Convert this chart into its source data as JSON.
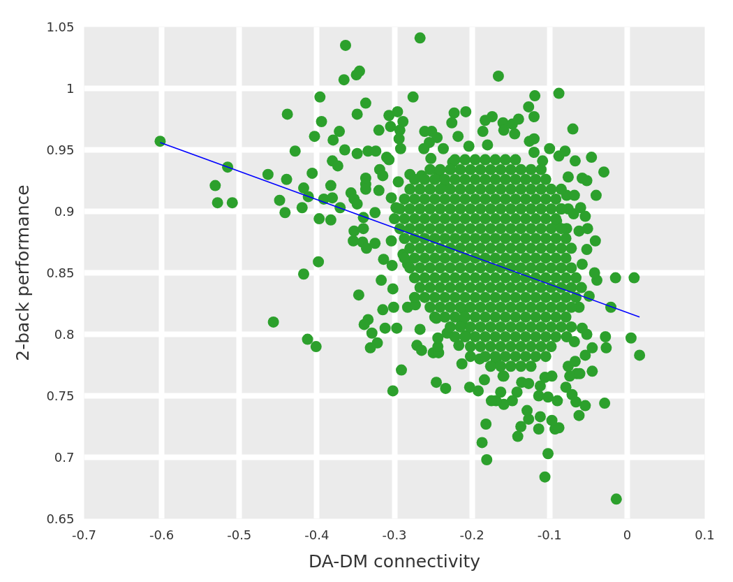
{
  "chart_data": {
    "type": "scatter",
    "xlabel": "DA-DM connectivity",
    "ylabel": "2-back performance",
    "xlim": [
      -0.7,
      0.1
    ],
    "ylim": [
      0.65,
      1.05
    ],
    "xticks": [
      -0.7,
      -0.6,
      -0.5,
      -0.4,
      -0.3,
      -0.2,
      -0.1,
      0,
      0.1
    ],
    "yticks": [
      0.65,
      0.7,
      0.75,
      0.8,
      0.85,
      0.9,
      0.95,
      1,
      1.05
    ],
    "grid": true,
    "marker": "circle",
    "series": [
      {
        "color": "#2ca02c",
        "x": [
          -0.363,
          -0.345,
          -0.349,
          -0.365,
          -0.396,
          -0.337,
          -0.438,
          -0.348,
          -0.394,
          -0.371,
          -0.403,
          -0.32,
          -0.307,
          -0.305,
          -0.379,
          -0.602,
          -0.428,
          -0.364,
          -0.348,
          -0.334,
          -0.324,
          -0.31,
          -0.307,
          -0.515,
          -0.38,
          -0.373,
          -0.463,
          -0.406,
          -0.439,
          -0.337,
          -0.319,
          -0.315,
          -0.531,
          -0.382,
          -0.337,
          -0.337,
          -0.32,
          -0.417,
          -0.411,
          -0.356,
          -0.352,
          -0.348,
          -0.448,
          -0.528,
          -0.509,
          -0.391,
          -0.38,
          -0.37,
          -0.419,
          -0.441,
          -0.397,
          -0.382,
          -0.34,
          -0.325,
          -0.352,
          -0.34,
          -0.353,
          -0.341,
          -0.336,
          -0.325,
          -0.304,
          -0.398,
          -0.417,
          -0.314,
          -0.303,
          -0.317,
          -0.346,
          -0.302,
          -0.456,
          -0.334,
          -0.339,
          -0.315,
          -0.301,
          -0.312,
          -0.329,
          -0.412,
          -0.401,
          -0.322,
          -0.331,
          -0.302,
          -0.267,
          -0.166,
          -0.276,
          -0.088,
          -0.119,
          -0.127,
          -0.12,
          -0.07,
          -0.296,
          -0.289,
          -0.293,
          -0.294,
          -0.292,
          -0.223,
          -0.208,
          -0.226,
          -0.261,
          -0.252,
          -0.245,
          -0.255,
          -0.262,
          -0.218,
          -0.183,
          -0.174,
          -0.186,
          -0.16,
          -0.159,
          -0.145,
          -0.148,
          -0.14,
          -0.126,
          -0.12,
          -0.18,
          -0.204,
          -0.1,
          -0.088,
          -0.08,
          -0.067,
          -0.046,
          -0.03,
          -0.12,
          -0.109,
          -0.243,
          -0.237,
          -0.253,
          -0.225,
          -0.235,
          -0.28,
          -0.295,
          -0.265,
          -0.052,
          -0.058,
          -0.076,
          -0.04,
          -0.078,
          -0.068,
          -0.085,
          -0.076,
          -0.069,
          -0.06,
          -0.054,
          -0.051,
          -0.062,
          -0.078,
          -0.041,
          -0.091,
          -0.052,
          -0.015,
          0.009,
          -0.039,
          -0.058,
          -0.283,
          -0.289,
          -0.304,
          -0.298,
          -0.014,
          -0.106,
          -0.102,
          -0.181,
          -0.187,
          -0.182,
          -0.141,
          -0.137,
          -0.127,
          -0.129,
          -0.114,
          -0.112,
          -0.093,
          -0.088,
          -0.097,
          -0.062,
          -0.054,
          -0.066,
          -0.071,
          -0.029,
          -0.045,
          -0.028,
          -0.027,
          0.005,
          0.016,
          -0.021,
          -0.045,
          -0.052,
          -0.058,
          -0.078,
          -0.068,
          -0.054,
          -0.065,
          -0.074,
          -0.079,
          -0.09,
          -0.102,
          -0.114,
          -0.112,
          -0.106,
          -0.142,
          -0.136,
          -0.148,
          -0.159,
          -0.169,
          -0.175,
          -0.163,
          -0.127,
          -0.159,
          -0.184,
          -0.192,
          -0.203,
          -0.246,
          -0.234,
          -0.291,
          -0.267,
          -0.271,
          -0.265,
          -0.25,
          -0.243,
          -0.244,
          -0.244,
          -0.246,
          -0.232,
          -0.297,
          -0.283,
          -0.273,
          -0.211,
          -0.213,
          -0.217,
          -0.208,
          -0.202,
          -0.19,
          -0.169,
          -0.16,
          -0.213,
          -0.097,
          -0.076,
          -0.067,
          -0.061,
          -0.049,
          -0.042,
          -0.062,
          -0.222,
          -0.209,
          -0.196,
          -0.183,
          -0.17,
          -0.157,
          -0.144,
          -0.254,
          -0.241,
          -0.228,
          -0.215,
          -0.202,
          -0.189,
          -0.176,
          -0.163,
          -0.15,
          -0.137,
          -0.124,
          -0.111,
          -0.274,
          -0.261,
          -0.248,
          -0.235,
          -0.222,
          -0.209,
          -0.196,
          -0.183,
          -0.17,
          -0.157,
          -0.144,
          -0.131,
          -0.118,
          -0.105,
          -0.28,
          -0.267,
          -0.254,
          -0.241,
          -0.228,
          -0.215,
          -0.202,
          -0.189,
          -0.176,
          -0.163,
          -0.15,
          -0.137,
          -0.124,
          -0.111,
          -0.098,
          -0.085,
          -0.287,
          -0.274,
          -0.261,
          -0.248,
          -0.235,
          -0.222,
          -0.209,
          -0.196,
          -0.183,
          -0.17,
          -0.157,
          -0.144,
          -0.131,
          -0.118,
          -0.105,
          -0.092,
          -0.293,
          -0.28,
          -0.267,
          -0.254,
          -0.241,
          -0.228,
          -0.215,
          -0.202,
          -0.189,
          -0.176,
          -0.163,
          -0.15,
          -0.137,
          -0.124,
          -0.111,
          -0.098,
          -0.085,
          -0.3,
          -0.287,
          -0.274,
          -0.261,
          -0.248,
          -0.235,
          -0.222,
          -0.209,
          -0.196,
          -0.183,
          -0.17,
          -0.157,
          -0.144,
          -0.131,
          -0.118,
          -0.105,
          -0.092,
          -0.293,
          -0.28,
          -0.267,
          -0.254,
          -0.241,
          -0.228,
          -0.215,
          -0.202,
          -0.189,
          -0.176,
          -0.163,
          -0.15,
          -0.137,
          -0.124,
          -0.111,
          -0.098,
          -0.085,
          -0.287,
          -0.274,
          -0.261,
          -0.248,
          -0.235,
          -0.222,
          -0.209,
          -0.196,
          -0.183,
          -0.17,
          -0.157,
          -0.144,
          -0.131,
          -0.118,
          -0.105,
          -0.092,
          -0.079,
          -0.28,
          -0.267,
          -0.254,
          -0.241,
          -0.228,
          -0.215,
          -0.202,
          -0.189,
          -0.176,
          -0.163,
          -0.15,
          -0.137,
          -0.124,
          -0.111,
          -0.098,
          -0.085,
          -0.072,
          -0.287,
          -0.274,
          -0.261,
          -0.248,
          -0.235,
          -0.222,
          -0.209,
          -0.196,
          -0.183,
          -0.17,
          -0.157,
          -0.144,
          -0.131,
          -0.118,
          -0.105,
          -0.092,
          -0.079,
          -0.28,
          -0.267,
          -0.254,
          -0.241,
          -0.228,
          -0.215,
          -0.202,
          -0.189,
          -0.176,
          -0.163,
          -0.15,
          -0.137,
          -0.124,
          -0.111,
          -0.098,
          -0.085,
          -0.072,
          -0.274,
          -0.261,
          -0.248,
          -0.235,
          -0.222,
          -0.209,
          -0.196,
          -0.183,
          -0.17,
          -0.157,
          -0.144,
          -0.131,
          -0.118,
          -0.105,
          -0.092,
          -0.079,
          -0.066,
          -0.267,
          -0.254,
          -0.241,
          -0.228,
          -0.215,
          -0.202,
          -0.189,
          -0.176,
          -0.163,
          -0.15,
          -0.137,
          -0.124,
          -0.111,
          -0.098,
          -0.085,
          -0.072,
          -0.059,
          -0.274,
          -0.261,
          -0.248,
          -0.235,
          -0.222,
          -0.209,
          -0.196,
          -0.183,
          -0.17,
          -0.157,
          -0.144,
          -0.131,
          -0.118,
          -0.105,
          -0.092,
          -0.079,
          -0.066,
          -0.254,
          -0.241,
          -0.228,
          -0.215,
          -0.202,
          -0.189,
          -0.176,
          -0.163,
          -0.15,
          -0.137,
          -0.124,
          -0.111,
          -0.098,
          -0.085,
          -0.072,
          -0.248,
          -0.235,
          -0.222,
          -0.209,
          -0.196,
          -0.183,
          -0.17,
          -0.157,
          -0.144,
          -0.131,
          -0.118,
          -0.105,
          -0.092,
          -0.079,
          -0.228,
          -0.215,
          -0.202,
          -0.189,
          -0.176,
          -0.163,
          -0.15,
          -0.137,
          -0.124,
          -0.111,
          -0.098,
          -0.085,
          -0.072,
          -0.222,
          -0.209,
          -0.196,
          -0.183,
          -0.17,
          -0.157,
          -0.144,
          -0.131,
          -0.118,
          -0.105,
          -0.092,
          -0.202,
          -0.189,
          -0.176,
          -0.163,
          -0.15,
          -0.137,
          -0.124,
          -0.111,
          -0.098,
          -0.183,
          -0.17,
          -0.157,
          -0.144,
          -0.131,
          -0.118,
          -0.105,
          -0.176,
          -0.163,
          -0.15,
          -0.137,
          -0.124
        ],
        "values": [
          1.035,
          1.014,
          1.011,
          1.007,
          0.993,
          0.988,
          0.979,
          0.979,
          0.973,
          0.965,
          0.961,
          0.966,
          0.978,
          0.969,
          0.958,
          0.957,
          0.949,
          0.95,
          0.947,
          0.949,
          0.949,
          0.944,
          0.942,
          0.936,
          0.941,
          0.937,
          0.93,
          0.931,
          0.926,
          0.927,
          0.934,
          0.929,
          0.921,
          0.921,
          0.922,
          0.918,
          0.917,
          0.919,
          0.912,
          0.915,
          0.91,
          0.906,
          0.909,
          0.907,
          0.907,
          0.91,
          0.911,
          0.903,
          0.903,
          0.899,
          0.894,
          0.893,
          0.895,
          0.899,
          0.884,
          0.886,
          0.876,
          0.875,
          0.87,
          0.874,
          0.876,
          0.859,
          0.849,
          0.861,
          0.856,
          0.844,
          0.832,
          0.837,
          0.81,
          0.812,
          0.808,
          0.82,
          0.822,
          0.805,
          0.801,
          0.796,
          0.79,
          0.793,
          0.789,
          0.754,
          1.041,
          1.01,
          0.993,
          0.996,
          0.994,
          0.985,
          0.977,
          0.967,
          0.981,
          0.973,
          0.966,
          0.959,
          0.951,
          0.98,
          0.981,
          0.972,
          0.965,
          0.965,
          0.96,
          0.956,
          0.951,
          0.961,
          0.974,
          0.977,
          0.965,
          0.972,
          0.966,
          0.963,
          0.971,
          0.975,
          0.957,
          0.959,
          0.954,
          0.953,
          0.951,
          0.945,
          0.949,
          0.941,
          0.944,
          0.932,
          0.948,
          0.941,
          0.932,
          0.951,
          0.943,
          0.94,
          0.921,
          0.93,
          0.924,
          0.929,
          0.925,
          0.927,
          0.928,
          0.913,
          0.913,
          0.913,
          0.902,
          0.902,
          0.898,
          0.903,
          0.896,
          0.886,
          0.884,
          0.886,
          0.876,
          0.892,
          0.869,
          0.846,
          0.846,
          0.844,
          0.857,
          0.857,
          0.865,
          0.911,
          0.903,
          0.666,
          0.684,
          0.703,
          0.698,
          0.712,
          0.727,
          0.717,
          0.725,
          0.731,
          0.738,
          0.723,
          0.733,
          0.723,
          0.724,
          0.73,
          0.734,
          0.742,
          0.745,
          0.751,
          0.744,
          0.77,
          0.798,
          0.789,
          0.797,
          0.783,
          0.822,
          0.789,
          0.8,
          0.805,
          0.798,
          0.794,
          0.783,
          0.768,
          0.766,
          0.757,
          0.746,
          0.749,
          0.75,
          0.758,
          0.765,
          0.753,
          0.761,
          0.746,
          0.743,
          0.746,
          0.746,
          0.753,
          0.76,
          0.766,
          0.763,
          0.754,
          0.757,
          0.761,
          0.756,
          0.771,
          0.804,
          0.791,
          0.787,
          0.785,
          0.785,
          0.79,
          0.797,
          0.813,
          0.801,
          0.805,
          0.822,
          0.824,
          0.82,
          0.81,
          0.791,
          0.799,
          0.782,
          0.78,
          0.778,
          0.766,
          0.776,
          0.766,
          0.774,
          0.778,
          0.768,
          0.831,
          0.85,
          0.822,
          0.942,
          0.942,
          0.942,
          0.942,
          0.942,
          0.942,
          0.942,
          0.934,
          0.934,
          0.934,
          0.934,
          0.934,
          0.934,
          0.934,
          0.934,
          0.934,
          0.934,
          0.934,
          0.934,
          0.926,
          0.926,
          0.926,
          0.926,
          0.926,
          0.926,
          0.926,
          0.926,
          0.926,
          0.926,
          0.926,
          0.926,
          0.926,
          0.926,
          0.918,
          0.918,
          0.918,
          0.918,
          0.918,
          0.918,
          0.918,
          0.918,
          0.918,
          0.918,
          0.918,
          0.918,
          0.918,
          0.918,
          0.918,
          0.918,
          0.91,
          0.91,
          0.91,
          0.91,
          0.91,
          0.91,
          0.91,
          0.91,
          0.91,
          0.91,
          0.91,
          0.91,
          0.91,
          0.91,
          0.91,
          0.91,
          0.902,
          0.902,
          0.902,
          0.902,
          0.902,
          0.902,
          0.902,
          0.902,
          0.902,
          0.902,
          0.902,
          0.902,
          0.902,
          0.902,
          0.902,
          0.902,
          0.902,
          0.894,
          0.894,
          0.894,
          0.894,
          0.894,
          0.894,
          0.894,
          0.894,
          0.894,
          0.894,
          0.894,
          0.894,
          0.894,
          0.894,
          0.894,
          0.894,
          0.894,
          0.886,
          0.886,
          0.886,
          0.886,
          0.886,
          0.886,
          0.886,
          0.886,
          0.886,
          0.886,
          0.886,
          0.886,
          0.886,
          0.886,
          0.886,
          0.886,
          0.886,
          0.878,
          0.878,
          0.878,
          0.878,
          0.878,
          0.878,
          0.878,
          0.878,
          0.878,
          0.878,
          0.878,
          0.878,
          0.878,
          0.878,
          0.878,
          0.878,
          0.878,
          0.87,
          0.87,
          0.87,
          0.87,
          0.87,
          0.87,
          0.87,
          0.87,
          0.87,
          0.87,
          0.87,
          0.87,
          0.87,
          0.87,
          0.87,
          0.87,
          0.87,
          0.862,
          0.862,
          0.862,
          0.862,
          0.862,
          0.862,
          0.862,
          0.862,
          0.862,
          0.862,
          0.862,
          0.862,
          0.862,
          0.862,
          0.862,
          0.862,
          0.862,
          0.854,
          0.854,
          0.854,
          0.854,
          0.854,
          0.854,
          0.854,
          0.854,
          0.854,
          0.854,
          0.854,
          0.854,
          0.854,
          0.854,
          0.854,
          0.854,
          0.854,
          0.846,
          0.846,
          0.846,
          0.846,
          0.846,
          0.846,
          0.846,
          0.846,
          0.846,
          0.846,
          0.846,
          0.846,
          0.846,
          0.846,
          0.846,
          0.846,
          0.846,
          0.838,
          0.838,
          0.838,
          0.838,
          0.838,
          0.838,
          0.838,
          0.838,
          0.838,
          0.838,
          0.838,
          0.838,
          0.838,
          0.838,
          0.838,
          0.838,
          0.838,
          0.83,
          0.83,
          0.83,
          0.83,
          0.83,
          0.83,
          0.83,
          0.83,
          0.83,
          0.83,
          0.83,
          0.83,
          0.83,
          0.83,
          0.83,
          0.83,
          0.83,
          0.822,
          0.822,
          0.822,
          0.822,
          0.822,
          0.822,
          0.822,
          0.822,
          0.822,
          0.822,
          0.822,
          0.822,
          0.822,
          0.822,
          0.822,
          0.814,
          0.814,
          0.814,
          0.814,
          0.814,
          0.814,
          0.814,
          0.814,
          0.814,
          0.814,
          0.814,
          0.814,
          0.814,
          0.814,
          0.806,
          0.806,
          0.806,
          0.806,
          0.806,
          0.806,
          0.806,
          0.806,
          0.806,
          0.806,
          0.806,
          0.806,
          0.806,
          0.798,
          0.798,
          0.798,
          0.798,
          0.798,
          0.798,
          0.798,
          0.798,
          0.798,
          0.798,
          0.798,
          0.79,
          0.79,
          0.79,
          0.79,
          0.79,
          0.79,
          0.79,
          0.79,
          0.79,
          0.782,
          0.782,
          0.782,
          0.782,
          0.782,
          0.782,
          0.782,
          0.774,
          0.774,
          0.774,
          0.774,
          0.774
        ]
      },
      {
        "type": "line",
        "color": "#0000ff",
        "marker": "none",
        "line_style": "solid",
        "x": [
          -0.602,
          0.016
        ],
        "values": [
          0.956,
          0.814
        ]
      }
    ]
  }
}
